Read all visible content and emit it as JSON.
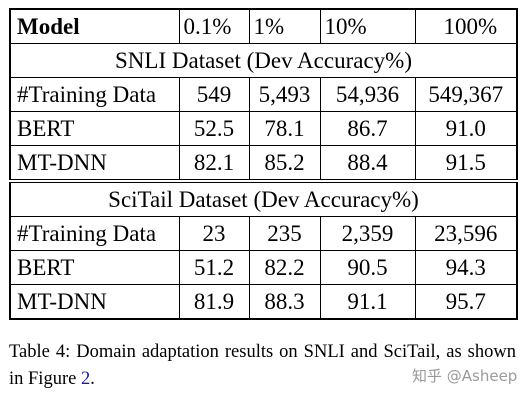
{
  "table": {
    "header": {
      "model_label": "Model",
      "columns": [
        "0.1%",
        "1%",
        "10%",
        "100%"
      ]
    },
    "sections": [
      {
        "title": "SNLI Dataset (Dev Accuracy%)",
        "rows": [
          {
            "label": "#Training Data",
            "values": [
              "549",
              "5,493",
              "54,936",
              "549,367"
            ]
          },
          {
            "label": "BERT",
            "values": [
              "52.5",
              "78.1",
              "86.7",
              "91.0"
            ]
          },
          {
            "label": "MT-DNN",
            "values": [
              "82.1",
              "85.2",
              "88.4",
              "91.5"
            ]
          }
        ]
      },
      {
        "title": "SciTail Dataset (Dev Accuracy%)",
        "rows": [
          {
            "label": "#Training Data",
            "values": [
              "23",
              "235",
              "2,359",
              "23,596"
            ]
          },
          {
            "label": "BERT",
            "values": [
              "51.2",
              "82.2",
              "90.5",
              "94.3"
            ]
          },
          {
            "label": "MT-DNN",
            "values": [
              "81.9",
              "88.3",
              "91.1",
              "95.7"
            ]
          }
        ]
      }
    ]
  },
  "caption": {
    "text": "Table 4: Domain adaptation results on SNLI and SciTail, as shown in Figure ",
    "figure_ref": "2",
    "end": "."
  },
  "watermark": "知乎 @Asheep"
}
